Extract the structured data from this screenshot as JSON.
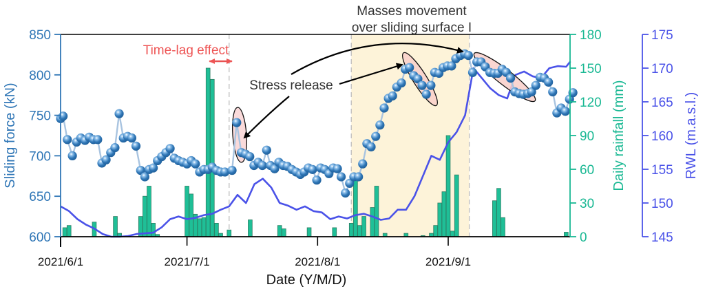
{
  "chart_data": {
    "type": "line",
    "title": "",
    "xlabel": "Date (Y/M/D)",
    "x_start": "2021/6/1",
    "x_end": "2021/9/30",
    "x_ticks": [
      "2021/6/1",
      "2021/7/1",
      "2021/8/1",
      "2021/9/1"
    ],
    "x_tick_days": [
      0,
      30,
      61,
      92
    ],
    "x_range_days": [
      0,
      121
    ],
    "axes": {
      "left": {
        "label": "Sliding force (kN)",
        "ylim": [
          600,
          850
        ],
        "ticks": [
          600,
          650,
          700,
          750,
          800,
          850
        ],
        "color": "#2f76b6"
      },
      "right1": {
        "label": "Daily rainfall (mm)",
        "ylim": [
          0,
          180
        ],
        "ticks": [
          0,
          30,
          60,
          90,
          120,
          150,
          180
        ],
        "color": "#19b893"
      },
      "right2": {
        "label": "RWL (m.a.s.l.)",
        "ylim": [
          145,
          175
        ],
        "ticks": [
          145,
          150,
          155,
          160,
          165,
          170,
          175
        ],
        "color": "#4a52e8"
      }
    },
    "series": [
      {
        "name": "Sliding force",
        "type": "line-marker",
        "axis": "left",
        "color": "#2f76b6",
        "line_color": "#a9c4e0",
        "x_days": [
          0,
          0.6,
          1.6,
          2.8,
          3.8,
          4.8,
          5.8,
          6.8,
          7.8,
          8.8,
          9.8,
          10.8,
          11.9,
          12.9,
          13.9,
          14.9,
          15.9,
          16.9,
          17.9,
          19,
          20,
          21,
          22,
          23,
          24,
          25,
          26,
          27,
          28,
          29,
          30,
          31,
          32,
          33,
          34,
          35,
          36,
          37,
          38,
          39,
          40.7,
          41.8,
          42.9,
          43.9,
          44.9,
          45.9,
          46.9,
          47.9,
          48.9,
          49.8,
          50.8,
          51.8,
          52.8,
          53.8,
          54.9,
          55.9,
          56.9,
          57.8,
          58.8,
          59.8,
          60.8,
          61.7,
          62.7,
          63.7,
          64.7,
          65.7,
          66.6,
          67.6,
          68.6,
          69.6,
          70.7,
          71.7,
          72.7,
          73.7,
          74.8,
          75.8,
          76.8,
          77.8,
          78.8,
          79.8,
          80.9,
          81.8,
          82.8,
          83.8,
          84.8,
          85.8,
          86.8,
          87.9,
          88.8,
          89.8,
          90.8,
          91.8,
          92.8,
          93.8,
          94.9,
          95.9,
          96.8,
          97.8,
          98.8,
          99.8,
          100.8,
          101.9,
          102.9,
          103.8,
          104.8,
          105.8,
          106.8,
          107.8,
          108.8,
          109.8,
          110.9,
          111.8,
          112.8,
          113.8,
          114.8,
          115.8,
          116.8,
          117.8,
          118.8,
          119.8,
          120.8,
          121.6
        ],
        "values": [
          746,
          749,
          720,
          700,
          717,
          722,
          719,
          723,
          720,
          720,
          691,
          695,
          704,
          710,
          752,
          722,
          724,
          722,
          712,
          682,
          674,
          683,
          685,
          694,
          699,
          704,
          709,
          697,
          694,
          692,
          690,
          694,
          690,
          680,
          683,
          683,
          686,
          682,
          680,
          680,
          682,
          741,
          704,
          702,
          699,
          688,
          692,
          688,
          707,
          688,
          684,
          692,
          688,
          687,
          683,
          680,
          677,
          680,
          685,
          683,
          670,
          685,
          683,
          678,
          685,
          684,
          674,
          654,
          666,
          674,
          674,
          690,
          715,
          711,
          724,
          738,
          759,
          771,
          774,
          785,
          790,
          807,
          809,
          799,
          795,
          787,
          776,
          787,
          803,
          802,
          809,
          811,
          811,
          820,
          824,
          826,
          824,
          803,
          816,
          816,
          810,
          803,
          802,
          802,
          807,
          803,
          796,
          779,
          777,
          776,
          777,
          779,
          787,
          797,
          796,
          791,
          779,
          753,
          759,
          755,
          770,
          778
        ]
      },
      {
        "name": "Daily rainfall",
        "type": "bar",
        "axis": "right1",
        "color": "#1fbf97",
        "edge_color": "#2e7d63",
        "x_days": [
          1,
          2,
          8,
          13,
          14,
          19,
          20,
          21,
          22,
          23,
          30,
          31,
          32,
          33,
          34,
          35,
          36,
          37,
          38,
          40,
          45,
          52,
          53,
          59,
          65,
          69,
          70,
          71,
          72,
          74,
          75,
          77,
          82,
          86,
          88,
          89,
          90,
          91,
          92,
          93,
          94,
          103,
          104,
          105,
          120
        ],
        "values": [
          8,
          10,
          13,
          18,
          3,
          18,
          36,
          45,
          12,
          2,
          45,
          38,
          20,
          16,
          17,
          150,
          140,
          12,
          3,
          6,
          15,
          10,
          7,
          8,
          8,
          12,
          54,
          10,
          18,
          26,
          45,
          3,
          3,
          1,
          3,
          10,
          30,
          40,
          90,
          5,
          55,
          32,
          43,
          17,
          4
        ]
      },
      {
        "name": "RWL",
        "type": "line",
        "axis": "right2",
        "color": "#4a52e8",
        "x_days": [
          0,
          2,
          4,
          6,
          8,
          10,
          12,
          14,
          16,
          18,
          20,
          22,
          24,
          26,
          28,
          30,
          32,
          34,
          36,
          38,
          40,
          42,
          44,
          46,
          48,
          50,
          52,
          54,
          56,
          58,
          60,
          62,
          64,
          66,
          68,
          70,
          72,
          74,
          76,
          78,
          80,
          82,
          84,
          86,
          88,
          90,
          92,
          94,
          96,
          98,
          100,
          102,
          104,
          106,
          108,
          110,
          112,
          114,
          116,
          118,
          120,
          121
        ],
        "values": [
          149.5,
          148.8,
          147.6,
          146.8,
          146.2,
          145.4,
          145.0,
          145.0,
          145.1,
          145.4,
          145.5,
          145.6,
          146.4,
          147.6,
          148.0,
          147.6,
          147.8,
          148.2,
          148.4,
          149.0,
          149.5,
          151.2,
          150.0,
          152.8,
          153.6,
          152.3,
          150.0,
          149.6,
          149.0,
          149.5,
          148.8,
          148.6,
          147.6,
          148.0,
          147.7,
          148.2,
          148.4,
          148.0,
          147.5,
          147.7,
          149.0,
          149.0,
          151.0,
          154.0,
          157.0,
          156.4,
          159.0,
          160.5,
          163.0,
          170.0,
          168.5,
          167.0,
          166.0,
          165.5,
          169.0,
          169.5,
          168.8,
          168.5,
          170.0,
          170.3,
          170.2,
          171.0
        ]
      }
    ],
    "annotations": {
      "shaded_region": {
        "label_line1": "Masses movement",
        "label_line2": "over sliding surface I",
        "start_day": 69,
        "end_day": 97,
        "color": "#fdf3d9"
      },
      "dashed_lines_days": [
        40,
        69,
        97
      ],
      "time_lag": {
        "label": "Time-lag effect",
        "start_day": 35,
        "end_day": 41,
        "color": "#e85252"
      },
      "stress_release": {
        "label": "Stress release"
      }
    }
  }
}
